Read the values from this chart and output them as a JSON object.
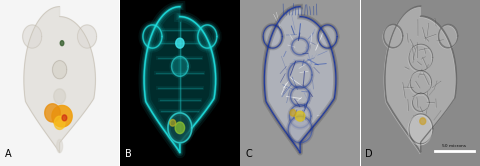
{
  "figsize": [
    4.8,
    1.66
  ],
  "dpi": 100,
  "labels": [
    "A",
    "B",
    "C",
    "D"
  ],
  "label_colors": [
    "#000000",
    "#ffffff",
    "#000000",
    "#000000"
  ],
  "bg_colors": [
    "#f8f8f8",
    "#000000",
    "#9a9a9a",
    "#8c8c8c"
  ],
  "scale_bar_text": "50 microns",
  "wspace": 0.008
}
